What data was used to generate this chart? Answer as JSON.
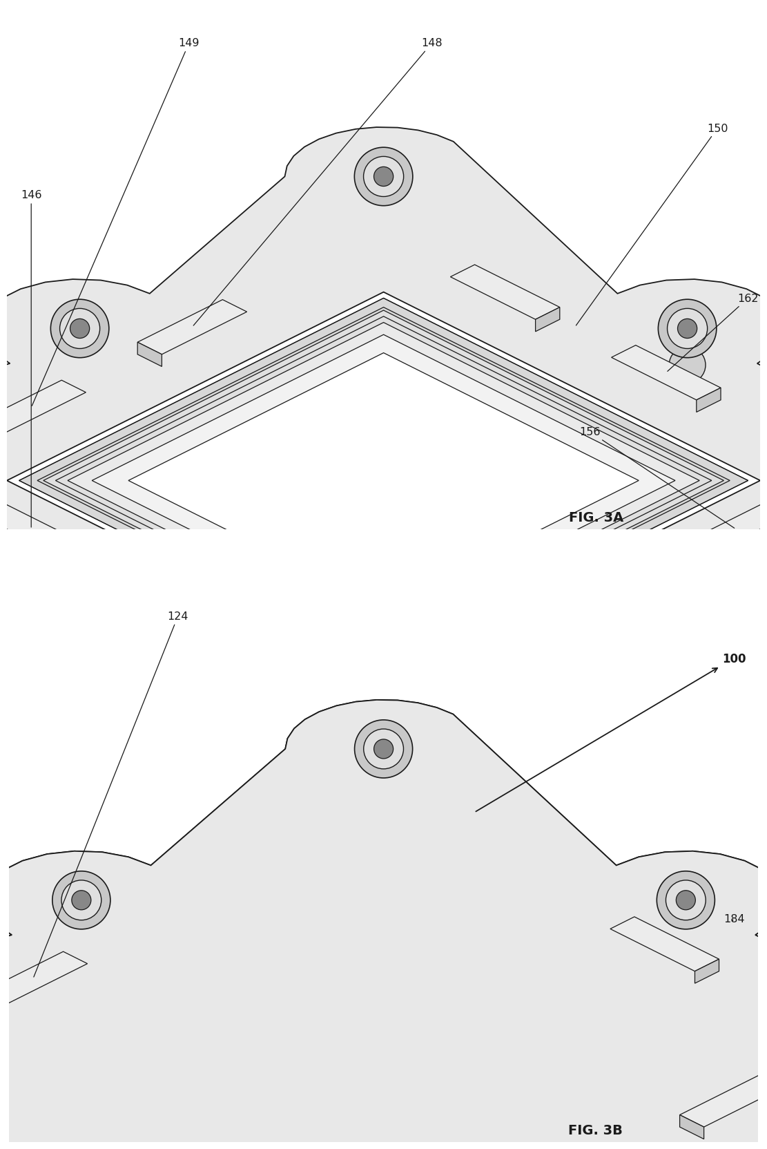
{
  "fig_title_3a": "FIG. 3A",
  "fig_title_3b": "FIG. 3B",
  "bg": "#ffffff",
  "lc": "#1a1a1a",
  "frame_fill": "#e8e8e8",
  "frame_mid": "#d0d0d0",
  "frame_dark": "#b8b8b8",
  "frame_light": "#f2f2f2",
  "white": "#ffffff",
  "groove_fill": "#e0e0e0",
  "rib_fill": "#d4d4d4",
  "hole_outer": "#c8c8c8",
  "hole_inner": "#e0e0e0",
  "hole_center": "#888888"
}
